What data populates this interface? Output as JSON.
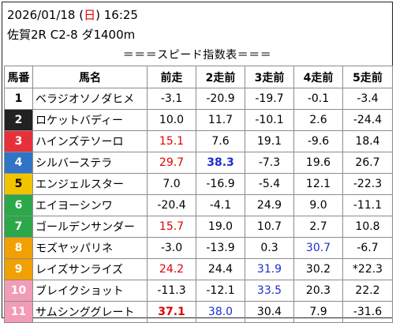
{
  "header": {
    "date": "2026/01/18",
    "weekday_open": " (",
    "weekday": "日",
    "weekday_close": ")",
    "time": " 16:25",
    "race": "佐賀2R C2-8 ダ1400m"
  },
  "title": "＝＝＝スピード指数表＝＝＝",
  "columns": [
    "馬番",
    "馬名",
    "前走",
    "2走前",
    "3走前",
    "4走前",
    "5走前"
  ],
  "colors": {
    "gate_1": "#ffffff",
    "gate_2": "#222222",
    "gate_3": "#e8303a",
    "gate_4": "#2f74c8",
    "gate_5": "#f2c400",
    "gate_6": "#2aa84a",
    "gate_7": "#f0a000",
    "gate_8": "#f39cb6",
    "red_value": "#e00000",
    "blue_value": "#1a2fd0"
  },
  "rows": [
    {
      "no": "1",
      "gate": 1,
      "name": "ベラジオソノダヒメ",
      "vals": [
        {
          "v": "-3.1"
        },
        {
          "v": "-20.9"
        },
        {
          "v": "-19.7"
        },
        {
          "v": "-0.1"
        },
        {
          "v": "-3.4"
        }
      ]
    },
    {
      "no": "2",
      "gate": 2,
      "name": "ロケットバディー",
      "vals": [
        {
          "v": "10.0"
        },
        {
          "v": "11.7"
        },
        {
          "v": "-10.1"
        },
        {
          "v": "2.6"
        },
        {
          "v": "-24.4"
        }
      ]
    },
    {
      "no": "3",
      "gate": 3,
      "name": "ハインズテソーロ",
      "vals": [
        {
          "v": "15.1",
          "c": "red"
        },
        {
          "v": "7.6"
        },
        {
          "v": "19.1"
        },
        {
          "v": "-9.6"
        },
        {
          "v": "18.4"
        }
      ]
    },
    {
      "no": "4",
      "gate": 4,
      "name": "シルバーステラ",
      "vals": [
        {
          "v": "29.7",
          "c": "red"
        },
        {
          "v": "38.3",
          "c": "blue",
          "b": true
        },
        {
          "v": "-7.3"
        },
        {
          "v": "19.6"
        },
        {
          "v": "26.7"
        }
      ]
    },
    {
      "no": "5",
      "gate": 5,
      "name": "エンジェルスター",
      "vals": [
        {
          "v": "7.0"
        },
        {
          "v": "-16.9"
        },
        {
          "v": "-5.4"
        },
        {
          "v": "12.1"
        },
        {
          "v": "-22.3"
        }
      ]
    },
    {
      "no": "6",
      "gate": 6,
      "name": "エイヨーシンワ",
      "vals": [
        {
          "v": "-20.4"
        },
        {
          "v": "-4.1"
        },
        {
          "v": "24.9"
        },
        {
          "v": "9.0"
        },
        {
          "v": "-11.1"
        }
      ]
    },
    {
      "no": "7",
      "gate": 6,
      "name": "ゴールデンサンダー",
      "vals": [
        {
          "v": "15.7",
          "c": "red"
        },
        {
          "v": "19.0"
        },
        {
          "v": "10.7"
        },
        {
          "v": "2.7"
        },
        {
          "v": "10.8"
        }
      ]
    },
    {
      "no": "8",
      "gate": 7,
      "name": "モズヤッパリネ",
      "vals": [
        {
          "v": "-3.0"
        },
        {
          "v": "-13.9"
        },
        {
          "v": "0.3"
        },
        {
          "v": "30.7",
          "c": "blue"
        },
        {
          "v": "-6.7"
        }
      ]
    },
    {
      "no": "9",
      "gate": 7,
      "name": "レイズサンライズ",
      "vals": [
        {
          "v": "24.2",
          "c": "red"
        },
        {
          "v": "24.4"
        },
        {
          "v": "31.9",
          "c": "blue"
        },
        {
          "v": "30.2"
        },
        {
          "v": "*22.3"
        }
      ]
    },
    {
      "no": "10",
      "gate": 8,
      "name": "ブレイクショット",
      "vals": [
        {
          "v": "-11.3"
        },
        {
          "v": "-12.1"
        },
        {
          "v": "33.5",
          "c": "blue"
        },
        {
          "v": "20.3"
        },
        {
          "v": "22.2"
        }
      ]
    },
    {
      "no": "11",
      "gate": 8,
      "name": "サムシンググレート",
      "vals": [
        {
          "v": "37.1",
          "c": "red",
          "b": true
        },
        {
          "v": "38.0",
          "c": "blue"
        },
        {
          "v": "30.4"
        },
        {
          "v": "7.9"
        },
        {
          "v": "-31.6"
        }
      ]
    }
  ]
}
